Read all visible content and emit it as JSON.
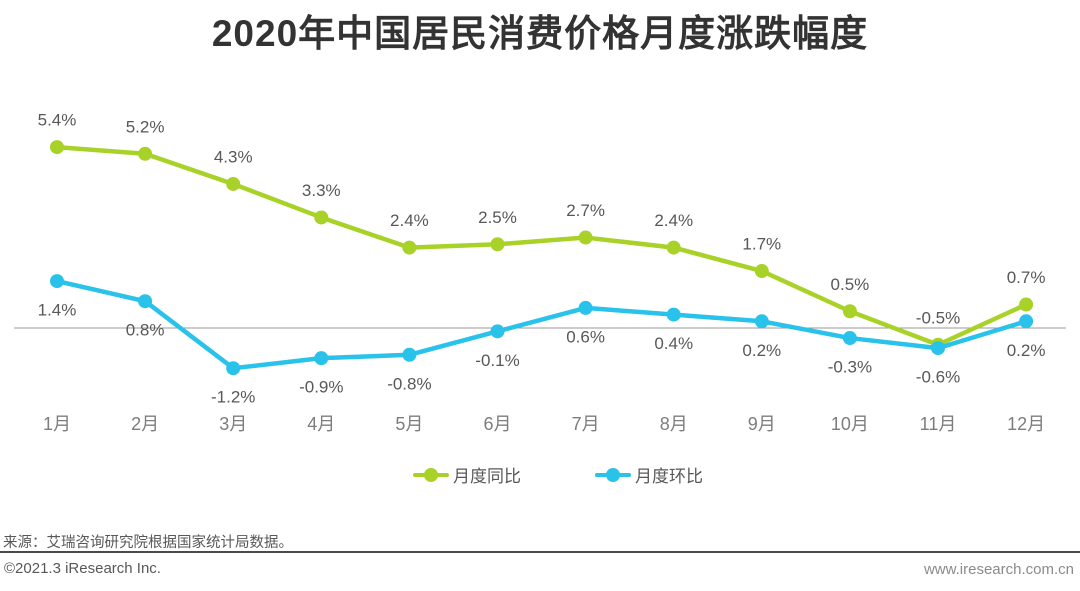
{
  "title": "2020年中国居民消费价格月度涨跌幅度",
  "chart_data": {
    "type": "line",
    "title": "2020年中国居民消费价格月度涨跌幅度",
    "categories": [
      "1月",
      "2月",
      "3月",
      "4月",
      "5月",
      "6月",
      "7月",
      "8月",
      "9月",
      "10月",
      "11月",
      "12月"
    ],
    "series": [
      {
        "name": "月度同比",
        "color": "#a8d228",
        "values": [
          5.4,
          5.2,
          4.3,
          3.3,
          2.4,
          2.5,
          2.7,
          2.4,
          1.7,
          0.5,
          -0.5,
          0.7
        ],
        "label_position": "above"
      },
      {
        "name": "月度环比",
        "color": "#29c2ea",
        "values": [
          1.4,
          0.8,
          -1.2,
          -0.9,
          -0.8,
          -0.1,
          0.6,
          0.4,
          0.2,
          -0.3,
          -0.6,
          0.2
        ],
        "label_position": "below"
      }
    ],
    "value_suffix": "%",
    "xlabel": "",
    "ylabel": "",
    "ylim": [
      -1.5,
      6
    ],
    "grid": false,
    "zero_axis": true,
    "legend_position": "bottom",
    "data_labels": true
  },
  "colors": {
    "title": "#333333",
    "data_label": "#595757",
    "month_label": "#7d7d7d",
    "axis_line": "#999999",
    "divider": "#4a4a4a"
  },
  "footer": {
    "source": "来源：艾瑞咨询研究院根据国家统计局数据。",
    "copyright": "©2021.3 iResearch Inc.",
    "website": "www.iresearch.com.cn"
  }
}
